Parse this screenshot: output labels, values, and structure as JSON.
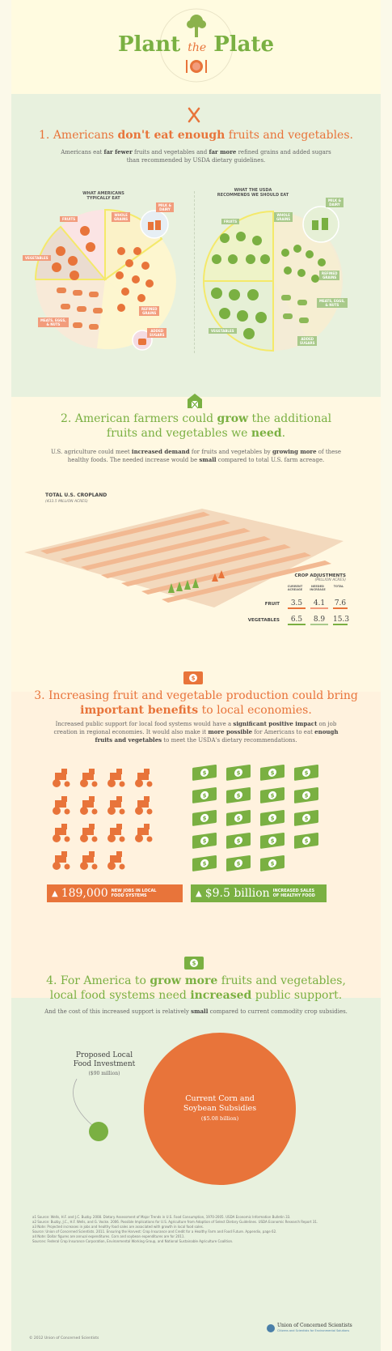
{
  "header": {
    "title_left": "Plant",
    "title_mid": "the",
    "title_right": "Plate"
  },
  "section1": {
    "heading_pre": "1. Americans ",
    "heading_bold": "don't eat enough",
    "heading_post": " fruits and vegetables.",
    "body_pre": "Americans eat ",
    "body_b1": "far fewer",
    "body_mid": " fruits and vegetables and ",
    "body_b2": "far more",
    "body_post": " refined grains and added sugars",
    "body_line2": "than recommended by USDA dietary guidelines.",
    "left_title_1": "WHAT AMERICANS",
    "left_title_2": "TYPICALLY EAT",
    "right_title_1": "WHAT THE USDA",
    "right_title_2": "RECOMMENDS WE SHOULD EAT",
    "labels": {
      "fruits": "FRUITS",
      "whole_grains_1": "WHOLE",
      "whole_grains_2": "GRAINS",
      "milk_1": "MILK &",
      "milk_2": "DAIRY",
      "vegetables": "VEGETABLES",
      "refined_1": "REFINED",
      "refined_2": "GRAINS",
      "meats_1": "MEATS, EGGS,",
      "meats_2": "& NUTS",
      "sugars_1": "ADDED",
      "sugars_2": "SUGARS"
    }
  },
  "section2": {
    "heading_l1_pre": "2. American farmers could ",
    "heading_l1_bold": "grow",
    "heading_l1_post": " the additional",
    "heading_l2_pre": "fruits and vegetables we ",
    "heading_l2_bold": "need",
    "heading_l2_post": ".",
    "body_l1_pre": "U.S. agriculture could meet ",
    "body_l1_b1": "increased demand",
    "body_l1_mid": " for fruits and vegetables by ",
    "body_l1_b2": "growing more",
    "body_l1_post": " of these",
    "body_l2_pre": "healthy foods. The needed increase would be ",
    "body_l2_b": "small",
    "body_l2_post": " compared to total U.S. farm acreage.",
    "cropland_title": "TOTAL U.S. CROPLAND",
    "cropland_sub": "(433.5 MILLION ACRES)",
    "table_title": "CROP ADJUSTMENTS",
    "table_sub": "(MILLION ACRES)",
    "col_current_1": "CURRENT",
    "col_current_2": "ACREAGE",
    "col_needed_1": "NEEDED",
    "col_needed_2": "INCREASE",
    "col_total": "TOTAL",
    "rows": [
      {
        "label": "FRUIT",
        "current": "3.5",
        "needed": "4.1",
        "total": "7.6"
      },
      {
        "label": "VEGETABLES",
        "current": "6.5",
        "needed": "8.9",
        "total": "15.3"
      }
    ]
  },
  "section3": {
    "heading_l1": "3. Increasing fruit and vegetable production could bring",
    "heading_l2_bold": "important benefits",
    "heading_l2_post": " to local economies.",
    "body_l1_pre": "Increased public support for local food systems would have a ",
    "body_l1_b": "significant positive impact",
    "body_l1_post": " on job",
    "body_l2_pre": "creation in regional economies. It would also make it ",
    "body_l2_b1": "more possible",
    "body_l2_mid": " for Americans to eat ",
    "body_l2_b2": "enough",
    "body_l3_b": "fruits and vegetables",
    "body_l3_post": " to meet the USDA's dietary recommendations.",
    "jobs_value": "189,000",
    "jobs_label_1": "NEW JOBS IN LOCAL",
    "jobs_label_2": "FOOD SYSTEMS",
    "sales_value": "$9.5 billion",
    "sales_label_1": "INCREASED SALES",
    "sales_label_2": "OF HEALTHY FOOD"
  },
  "section4": {
    "heading_l1_pre": "4. For America to ",
    "heading_l1_bold": "grow more",
    "heading_l1_post": " fruits and vegetables,",
    "heading_l2_pre": "local food systems need ",
    "heading_l2_bold": "increased",
    "heading_l2_post": " public support.",
    "body_pre": "And the cost of this increased support is relatively ",
    "body_b": "small",
    "body_post": " compared to current commodity crop subsidies.",
    "small_title_1": "Proposed Local",
    "small_title_2": "Food Investment",
    "small_value": "($90 million)",
    "big_title_1": "Current Corn and",
    "big_title_2": "Soybean Subsidies",
    "big_value": "($5.08 billion)"
  },
  "footer": {
    "notes": [
      "a1  Source: Wells, H.F. and J.C. Buzby. 2008. Dietary Assessment of Major Trends in U.S. Food Consumption, 1970-2005. USDA Economic Information Bulletin 33.",
      "a2  Source: Buzby, J.C., H.F. Wells, and G. Vocke. 2006. Possible Implications for U.S. Agriculture from Adoption of Select Dietary Guidelines. USDA Economic Research Report 31.",
      "a3  Note: Projected increases in jobs and healthy food sales are associated with growth in local food sales.",
      "     Source: Union of Concerned Scientists. 2011. Ensuring the Harvest: Crop Insurance and Credit for a Healthy Farm and Food Future. Appendix, page 62.",
      "a4  Note: Dollar figures are annual expenditures. Corn and soybean expenditures are for 2011.",
      "     Sources: Federal Crop Insurance Corporation, Environmental Working Group, and National Sustainable Agriculture Coalition."
    ],
    "copyright": "© 2012 Union of Concerned Scientists",
    "org_name": "Union of Concerned Scientists",
    "org_tagline": "Citizens and Scientists for Environmental Solutions"
  },
  "colors": {
    "orange": "#e8743a",
    "green": "#7ab042",
    "highlight": "#f4e96a"
  }
}
